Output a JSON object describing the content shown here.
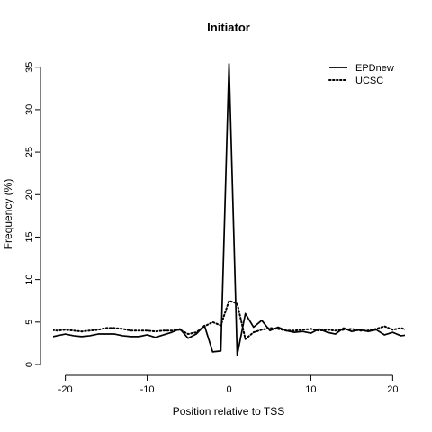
{
  "chart_data": {
    "type": "line",
    "title": "Initiator",
    "xlabel": "Position relative to TSS",
    "ylabel": "Frequency (%)",
    "xlim": [
      -21.5,
      21.5
    ],
    "ylim": [
      0,
      35.5
    ],
    "xticks": [
      -20,
      -10,
      0,
      10,
      20
    ],
    "xtick_labels": [
      "-20",
      "-10",
      "0",
      "10",
      "20"
    ],
    "yticks": [
      0,
      5,
      10,
      15,
      20,
      25,
      30,
      35
    ],
    "ytick_labels": [
      "0",
      "5",
      "10",
      "15",
      "20",
      "25",
      "30",
      "35"
    ],
    "grid": false,
    "legend_position": "top-right",
    "x": [
      -22,
      -21,
      -20,
      -19,
      -18,
      -17,
      -16,
      -15,
      -14,
      -13,
      -12,
      -11,
      -10,
      -9,
      -8,
      -7,
      -6,
      -5,
      -4,
      -3,
      -2,
      -1,
      0,
      1,
      2,
      3,
      4,
      5,
      6,
      7,
      8,
      9,
      10,
      11,
      12,
      13,
      14,
      15,
      16,
      17,
      18,
      19,
      20,
      21,
      22
    ],
    "series": [
      {
        "name": "EPDnew",
        "line_style": "solid",
        "values": [
          3.2,
          3.4,
          3.6,
          3.4,
          3.3,
          3.4,
          3.6,
          3.6,
          3.6,
          3.4,
          3.3,
          3.3,
          3.5,
          3.2,
          3.5,
          3.8,
          4.2,
          3.1,
          3.6,
          4.6,
          1.5,
          1.6,
          35.4,
          1.1,
          6.0,
          4.4,
          5.2,
          4.0,
          4.4,
          4.0,
          3.8,
          3.9,
          3.7,
          4.2,
          3.8,
          3.6,
          4.3,
          3.9,
          4.1,
          3.9,
          4.1,
          3.5,
          3.8,
          3.4,
          3.5
        ]
      },
      {
        "name": "UCSC",
        "line_style": "dotted",
        "values": [
          4.1,
          4.0,
          4.1,
          4.0,
          3.9,
          4.0,
          4.1,
          4.3,
          4.3,
          4.2,
          4.0,
          4.0,
          4.0,
          3.9,
          4.0,
          4.0,
          4.1,
          3.6,
          3.8,
          4.5,
          5.0,
          4.6,
          7.5,
          7.2,
          3.0,
          3.8,
          4.1,
          4.3,
          4.2,
          4.0,
          4.0,
          4.1,
          4.2,
          4.0,
          4.1,
          4.0,
          4.1,
          4.2,
          4.0,
          4.0,
          4.2,
          4.5,
          4.1,
          4.3,
          4.0
        ]
      }
    ]
  }
}
